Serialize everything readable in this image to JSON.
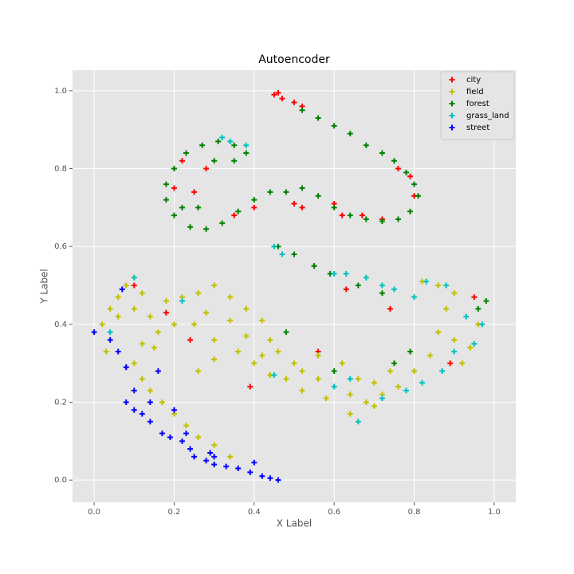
{
  "chart_data": {
    "type": "scatter",
    "title": "Autoencoder",
    "x_label": "X Label",
    "y_label": "Y Label",
    "xlim": [
      -0.054,
      1.054
    ],
    "ylim": [
      -0.057,
      1.053
    ],
    "xticks": [
      {
        "value": 0,
        "label": "0.0"
      },
      0.2,
      0.4,
      0.6,
      0.8,
      {
        "value": 1,
        "label": "1.0"
      }
    ],
    "yticks": [
      {
        "value": 0,
        "label": "0.0"
      },
      0.2,
      0.4,
      0.6,
      0.8,
      {
        "value": 1,
        "label": "1.0"
      }
    ],
    "grid": true,
    "legend": "upper right",
    "marker": "+",
    "series": [
      {
        "name": "city",
        "color": "#ff0000",
        "x": [
          0.45,
          0.46,
          0.47,
          0.5,
          0.52,
          0.8,
          0.79,
          0.76,
          0.2,
          0.25,
          0.22,
          0.28,
          0.35,
          0.4,
          0.5,
          0.52,
          0.6,
          0.67,
          0.72,
          0.55,
          0.63,
          0.74,
          0.95,
          0.89,
          0.18,
          0.24,
          0.08,
          0.39,
          0.56,
          0.1,
          0.62
        ],
        "y": [
          0.99,
          0.995,
          0.98,
          0.97,
          0.96,
          0.73,
          0.78,
          0.8,
          0.75,
          0.74,
          0.82,
          0.8,
          0.68,
          0.7,
          0.71,
          0.7,
          0.71,
          0.68,
          0.67,
          0.55,
          0.49,
          0.44,
          0.47,
          0.3,
          0.43,
          0.36,
          0.29,
          0.24,
          0.33,
          0.5,
          0.68
        ]
      },
      {
        "name": "field",
        "color": "#bfbf00",
        "x": [
          0.02,
          0.04,
          0.06,
          0.08,
          0.1,
          0.12,
          0.06,
          0.1,
          0.14,
          0.18,
          0.22,
          0.26,
          0.3,
          0.34,
          0.38,
          0.42,
          0.44,
          0.42,
          0.36,
          0.3,
          0.25,
          0.2,
          0.16,
          0.12,
          0.1,
          0.12,
          0.14,
          0.17,
          0.2,
          0.23,
          0.26,
          0.3,
          0.34,
          0.03,
          0.15,
          0.28,
          0.34,
          0.38,
          0.4,
          0.44,
          0.48,
          0.52,
          0.56,
          0.6,
          0.64,
          0.68,
          0.72,
          0.76,
          0.8,
          0.84,
          0.86,
          0.88,
          0.9,
          0.86,
          0.82,
          0.9,
          0.92,
          0.94,
          0.96,
          0.56,
          0.62,
          0.66,
          0.7,
          0.74,
          0.52,
          0.58,
          0.64,
          0.7,
          0.5,
          0.46,
          0.26,
          0.3
        ],
        "y": [
          0.4,
          0.44,
          0.47,
          0.5,
          0.52,
          0.48,
          0.42,
          0.44,
          0.42,
          0.46,
          0.47,
          0.48,
          0.5,
          0.47,
          0.44,
          0.41,
          0.36,
          0.32,
          0.33,
          0.36,
          0.4,
          0.4,
          0.38,
          0.35,
          0.3,
          0.26,
          0.23,
          0.2,
          0.17,
          0.14,
          0.11,
          0.09,
          0.06,
          0.33,
          0.34,
          0.43,
          0.41,
          0.37,
          0.3,
          0.27,
          0.26,
          0.28,
          0.26,
          0.24,
          0.22,
          0.2,
          0.22,
          0.24,
          0.28,
          0.32,
          0.38,
          0.44,
          0.48,
          0.5,
          0.51,
          0.36,
          0.3,
          0.34,
          0.4,
          0.32,
          0.3,
          0.26,
          0.25,
          0.28,
          0.23,
          0.21,
          0.17,
          0.19,
          0.3,
          0.33,
          0.28,
          0.31
        ]
      },
      {
        "name": "forest",
        "color": "#008000",
        "x": [
          0.52,
          0.56,
          0.6,
          0.64,
          0.68,
          0.72,
          0.75,
          0.78,
          0.8,
          0.81,
          0.79,
          0.76,
          0.72,
          0.68,
          0.64,
          0.6,
          0.56,
          0.52,
          0.48,
          0.44,
          0.4,
          0.36,
          0.32,
          0.28,
          0.24,
          0.2,
          0.18,
          0.18,
          0.2,
          0.23,
          0.27,
          0.31,
          0.35,
          0.38,
          0.26,
          0.22,
          0.3,
          0.35,
          0.46,
          0.5,
          0.55,
          0.59,
          0.66,
          0.72,
          0.98,
          0.96,
          0.6,
          0.75,
          0.48,
          0.79
        ],
        "y": [
          0.95,
          0.93,
          0.91,
          0.89,
          0.86,
          0.84,
          0.82,
          0.79,
          0.76,
          0.73,
          0.69,
          0.67,
          0.665,
          0.67,
          0.68,
          0.7,
          0.73,
          0.75,
          0.74,
          0.74,
          0.72,
          0.69,
          0.66,
          0.645,
          0.65,
          0.68,
          0.72,
          0.76,
          0.8,
          0.84,
          0.86,
          0.87,
          0.86,
          0.84,
          0.7,
          0.7,
          0.82,
          0.82,
          0.6,
          0.58,
          0.55,
          0.53,
          0.5,
          0.48,
          0.46,
          0.44,
          0.28,
          0.3,
          0.38,
          0.33
        ]
      },
      {
        "name": "grass_land",
        "color": "#00bfbf",
        "x": [
          0.32,
          0.34,
          0.38,
          0.45,
          0.47,
          0.6,
          0.63,
          0.68,
          0.72,
          0.75,
          0.8,
          0.83,
          0.88,
          0.93,
          0.97,
          0.95,
          0.9,
          0.87,
          0.82,
          0.78,
          0.72,
          0.66,
          0.64,
          0.45,
          0.1,
          0.04,
          0.22,
          0.6
        ],
        "y": [
          0.88,
          0.87,
          0.86,
          0.6,
          0.58,
          0.53,
          0.53,
          0.52,
          0.5,
          0.49,
          0.47,
          0.51,
          0.5,
          0.42,
          0.4,
          0.35,
          0.33,
          0.28,
          0.25,
          0.23,
          0.21,
          0.15,
          0.26,
          0.27,
          0.52,
          0.38,
          0.46,
          0.24
        ]
      },
      {
        "name": "street",
        "color": "#0000ff",
        "x": [
          0.0,
          0.04,
          0.06,
          0.07,
          0.08,
          0.16,
          0.1,
          0.08,
          0.1,
          0.12,
          0.14,
          0.17,
          0.19,
          0.22,
          0.24,
          0.25,
          0.28,
          0.3,
          0.33,
          0.36,
          0.39,
          0.42,
          0.44,
          0.46,
          0.4,
          0.29,
          0.23,
          0.2,
          0.14,
          0.3
        ],
        "y": [
          0.38,
          0.36,
          0.33,
          0.49,
          0.29,
          0.28,
          0.23,
          0.2,
          0.18,
          0.17,
          0.15,
          0.12,
          0.11,
          0.1,
          0.08,
          0.06,
          0.05,
          0.04,
          0.035,
          0.03,
          0.02,
          0.01,
          0.005,
          0.0,
          0.045,
          0.07,
          0.12,
          0.18,
          0.2,
          0.06
        ]
      }
    ]
  }
}
